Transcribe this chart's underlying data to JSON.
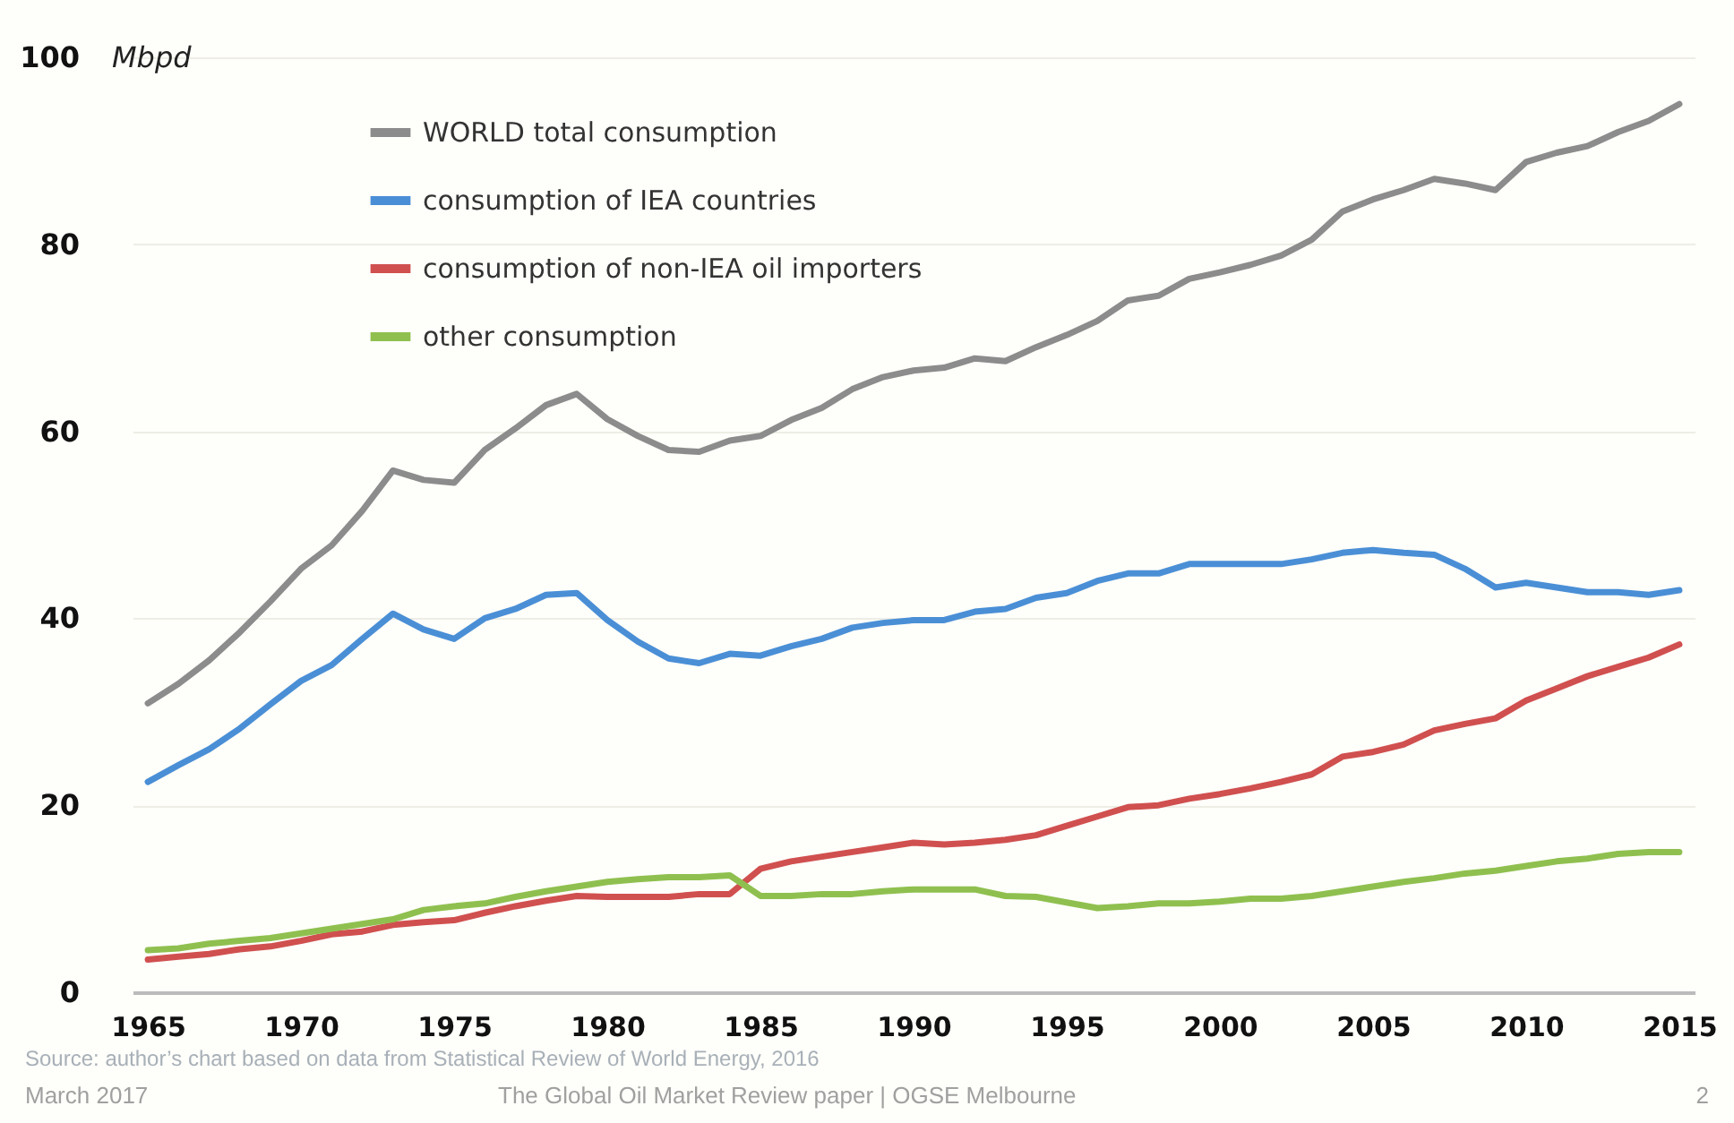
{
  "chart_data": {
    "type": "line",
    "ylabel": "Mbpd",
    "x": [
      1965,
      1966,
      1967,
      1968,
      1969,
      1970,
      1971,
      1972,
      1973,
      1974,
      1975,
      1976,
      1977,
      1978,
      1979,
      1980,
      1981,
      1982,
      1983,
      1984,
      1985,
      1986,
      1987,
      1988,
      1989,
      1990,
      1991,
      1992,
      1993,
      1994,
      1995,
      1996,
      1997,
      1998,
      1999,
      2000,
      2001,
      2002,
      2003,
      2004,
      2005,
      2006,
      2007,
      2008,
      2009,
      2010,
      2011,
      2012,
      2013,
      2014,
      2015
    ],
    "series": [
      {
        "name": "WORLD total consumption",
        "color": "#8c8c8c",
        "values": [
          30.9,
          33,
          35.5,
          38.5,
          41.8,
          45.3,
          47.8,
          51.5,
          55.8,
          54.8,
          54.5,
          58,
          60.3,
          62.8,
          64,
          61.3,
          59.5,
          58,
          57.8,
          59,
          59.5,
          61.2,
          62.5,
          64.5,
          65.8,
          66.5,
          66.8,
          67.8,
          67.5,
          69,
          70.3,
          71.8,
          74,
          74.5,
          76.3,
          77,
          77.8,
          78.8,
          80.5,
          83.5,
          84.8,
          85.8,
          87,
          86.5,
          85.8,
          88.8,
          89.8,
          90.5,
          92,
          93.2,
          95
        ]
      },
      {
        "name": "consumption of IEA countries",
        "color": "#4a8fd6",
        "values": [
          22.5,
          24.3,
          26,
          28.2,
          30.8,
          33.3,
          35,
          37.8,
          40.5,
          38.8,
          37.8,
          40,
          41,
          42.5,
          42.7,
          39.8,
          37.5,
          35.7,
          35.2,
          36.2,
          36,
          37,
          37.8,
          39,
          39.5,
          39.8,
          39.8,
          40.7,
          41,
          42.2,
          42.7,
          44,
          44.8,
          44.8,
          45.8,
          45.8,
          45.8,
          45.8,
          46.3,
          47,
          47.3,
          47,
          46.8,
          45.3,
          43.3,
          43.8,
          43.3,
          42.8,
          42.8,
          42.5,
          43
        ]
      },
      {
        "name": "consumption of non-IEA oil importers",
        "color": "#d0504f",
        "values": [
          3.5,
          3.8,
          4.1,
          4.6,
          4.9,
          5.5,
          6.2,
          6.5,
          7.2,
          7.5,
          7.7,
          8.5,
          9.2,
          9.8,
          10.3,
          10.2,
          10.2,
          10.2,
          10.5,
          10.5,
          13.2,
          14,
          14.5,
          15,
          15.5,
          16,
          15.8,
          16,
          16.3,
          16.8,
          17.8,
          18.8,
          19.8,
          20,
          20.7,
          21.2,
          21.8,
          22.5,
          23.3,
          25.2,
          25.7,
          26.5,
          28,
          28.7,
          29.3,
          31.2,
          32.5,
          33.8,
          34.8,
          35.8,
          37.2
        ]
      },
      {
        "name": "other consumption",
        "color": "#8fc04f",
        "values": [
          4.5,
          4.7,
          5.2,
          5.5,
          5.8,
          6.3,
          6.8,
          7.3,
          7.8,
          8.8,
          9.2,
          9.5,
          10.2,
          10.8,
          11.3,
          11.8,
          12.1,
          12.3,
          12.3,
          12.5,
          10.3,
          10.3,
          10.5,
          10.5,
          10.8,
          11,
          11,
          11,
          10.3,
          10.2,
          9.6,
          9,
          9.2,
          9.5,
          9.5,
          9.7,
          10,
          10,
          10.3,
          10.8,
          11.3,
          11.8,
          12.2,
          12.7,
          13,
          13.5,
          14,
          14.3,
          14.8,
          15,
          15
        ]
      }
    ],
    "xlim": [
      1964.5,
      2015.5
    ],
    "xticks": [
      1965,
      1970,
      1975,
      1980,
      1985,
      1990,
      1995,
      2000,
      2005,
      2010,
      2015
    ],
    "ylim": [
      0,
      100
    ],
    "yticks": [
      0,
      20,
      40,
      60,
      80,
      100
    ],
    "grid": "y",
    "legend": "top left",
    "annotations": [
      "Source: author’s chart based on data from Statistical Review of World Energy, 2016",
      "March 2017",
      "The Global Oil Market Review paper |  OGSE Melbourne",
      "2"
    ]
  }
}
